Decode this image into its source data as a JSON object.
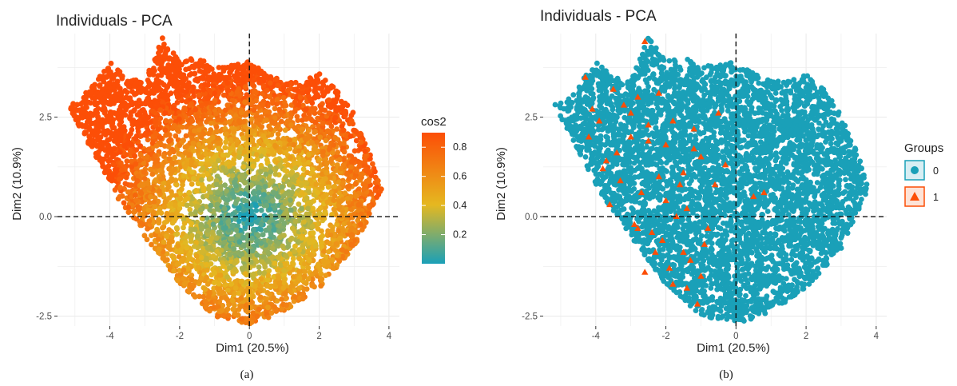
{
  "chart_data": [
    {
      "type": "scatter",
      "panel_caption": "(a)",
      "title": "Individuals - PCA",
      "xlabel": "Dim1 (20.5%)",
      "ylabel": "Dim2 (10.9%)",
      "xlim": [
        -5.5,
        4.3
      ],
      "ylim": [
        -2.75,
        4.6
      ],
      "xticks": [
        -4,
        -2,
        0,
        2,
        4
      ],
      "xtick_labels": [
        "-4",
        "-2",
        "0",
        "2",
        "4"
      ],
      "yticks": [
        -2.5,
        0.0,
        2.5
      ],
      "ytick_labels": [
        "-2.5",
        "0.0",
        "2.5"
      ],
      "grid": true,
      "reference_lines": {
        "x": 0,
        "y": 0,
        "style": "dashed"
      },
      "color_by": "cos2",
      "legend": {
        "title": "cos2",
        "placement": "right",
        "kind": "gradient",
        "range": [
          0,
          0.9
        ],
        "ticks": [
          0.2,
          0.4,
          0.6,
          0.8
        ],
        "tick_labels": [
          "0.2",
          "0.4",
          "0.6",
          "0.8"
        ],
        "gradient_colors": [
          "#1aa0b8",
          "#e5b820",
          "#fc4e07"
        ]
      },
      "point_cloud": {
        "x": [
          -5.2,
          -4.9,
          -4.5,
          -4.0,
          -3.5,
          -3.0,
          -2.5,
          -2.0,
          -1.5,
          -1.0,
          -0.5,
          0.0,
          0.5,
          1.0,
          1.5,
          2.0,
          2.5,
          3.0,
          3.5,
          3.8,
          3.0,
          2.0,
          1.0,
          0.0,
          -1.0,
          -2.0,
          -3.0,
          -3.8
        ],
        "y": [
          2.8,
          2.9,
          3.3,
          3.9,
          3.5,
          3.4,
          4.5,
          3.9,
          4.0,
          3.8,
          3.8,
          3.9,
          3.6,
          3.4,
          3.4,
          3.6,
          3.2,
          2.6,
          1.5,
          0.7,
          -0.8,
          -1.8,
          -2.4,
          -2.7,
          -2.5,
          -1.7,
          -0.5,
          0.5
        ],
        "count_estimate": 6000
      }
    },
    {
      "type": "scatter",
      "panel_caption": "(b)",
      "title": "Individuals - PCA",
      "xlabel": "Dim1 (20.5%)",
      "ylabel": "Dim2 (10.9%)",
      "xlim": [
        -5.5,
        4.3
      ],
      "ylim": [
        -2.75,
        4.6
      ],
      "xticks": [
        -4,
        -2,
        0,
        2,
        4
      ],
      "xtick_labels": [
        "-4",
        "-2",
        "0",
        "2",
        "4"
      ],
      "yticks": [
        -2.5,
        0.0,
        2.5
      ],
      "ytick_labels": [
        "-2.5",
        "0.0",
        "2.5"
      ],
      "grid": true,
      "reference_lines": {
        "x": 0,
        "y": 0,
        "style": "dashed"
      },
      "legend": {
        "title": "Groups",
        "placement": "right",
        "kind": "categorical"
      },
      "series": [
        {
          "name": "0",
          "marker": "circle",
          "color": "#1aa0b8",
          "count_estimate": 6000
        },
        {
          "name": "1",
          "marker": "triangle",
          "color": "#fc4e07",
          "x": [
            -2.6,
            -4.3,
            -4.1,
            -3.9,
            -4.2,
            -3.8,
            -3.5,
            -3.2,
            -3.0,
            -2.8,
            -2.5,
            -2.2,
            -2.0,
            -1.8,
            -1.5,
            -1.4,
            -1.2,
            -1.0,
            -2.7,
            -3.3,
            -3.6,
            -2.9,
            -2.4,
            -2.1,
            -1.7,
            -1.5,
            -1.3,
            -0.9,
            -0.6,
            -0.3,
            0.5,
            0.8,
            -1.0,
            -1.9,
            -2.3,
            -2.6,
            -2.0,
            -1.6,
            -1.2,
            -0.8,
            -1.4,
            -1.8,
            -2.2,
            -2.5,
            -3.0,
            -3.4,
            -3.7,
            -2.8,
            -1.1,
            -0.5
          ],
          "y": [
            4.4,
            3.5,
            2.7,
            2.4,
            2.0,
            1.2,
            3.2,
            2.8,
            2.6,
            3.0,
            2.3,
            3.1,
            1.8,
            2.4,
            1.1,
            0.2,
            2.2,
            1.5,
            0.6,
            0.9,
            0.3,
            -0.2,
            -0.4,
            -0.6,
            0.0,
            -0.9,
            -1.1,
            -0.7,
            0.8,
            1.3,
            0.5,
            0.6,
            -1.5,
            -1.3,
            -0.9,
            -1.4,
            0.4,
            0.8,
            1.7,
            -0.3,
            -1.8,
            -1.7,
            1.0,
            1.9,
            2.0,
            1.6,
            1.4,
            -0.3,
            -2.2,
            2.6
          ]
        }
      ],
      "point_cloud": {
        "x": [
          -5.2,
          -4.9,
          -4.5,
          -4.0,
          -3.5,
          -3.0,
          -2.5,
          -2.0,
          -1.5,
          -1.0,
          -0.5,
          0.0,
          0.5,
          1.0,
          1.5,
          2.0,
          2.5,
          3.0,
          3.5,
          3.8,
          3.0,
          2.0,
          1.0,
          0.0,
          -1.0,
          -2.0,
          -3.0,
          -3.8
        ],
        "y": [
          2.8,
          2.9,
          3.3,
          3.9,
          3.5,
          3.4,
          4.5,
          3.9,
          4.0,
          3.8,
          3.8,
          3.9,
          3.6,
          3.4,
          3.4,
          3.6,
          3.2,
          2.6,
          1.5,
          0.7,
          -0.8,
          -1.8,
          -2.4,
          -2.7,
          -2.5,
          -1.7,
          -0.5,
          0.5
        ]
      }
    }
  ]
}
